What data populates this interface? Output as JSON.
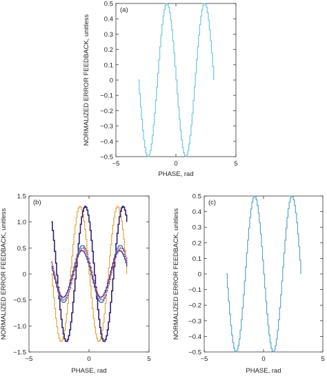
{
  "chart_data": [
    {
      "panel": "(a)",
      "type": "line",
      "xlabel": "PHASE, rad",
      "ylabel": "NORMALIZED ERROR FEEDBACK, unitless",
      "xlim": [
        -5,
        5
      ],
      "ylim": [
        -0.5,
        0.5
      ],
      "xticks": [
        -5,
        0,
        5
      ],
      "yticks": [
        -0.5,
        -0.4,
        -0.3,
        -0.2,
        -0.1,
        0,
        0.1,
        0.2,
        0.3,
        0.4,
        0.5
      ],
      "yticklabels": [
        "−0.5",
        "−0.4",
        "−0.3",
        "−0.2",
        "−0.1",
        "0",
        "0.1",
        "0.2",
        "0.3",
        "0.4",
        "0.5"
      ],
      "grid": false,
      "series": [
        {
          "color": "#6cc6dc",
          "amplitude": 0.5,
          "offset": 0,
          "x_start": -3.1416,
          "x_end": 3.1416
        }
      ]
    },
    {
      "panel": "(b)",
      "type": "line",
      "xlabel": "PHASE, rad",
      "ylabel": "NORMALIZED ERROR FEEDBACK, unitless",
      "xlim": [
        -5,
        5
      ],
      "ylim": [
        -1.5,
        1.5
      ],
      "xticks": [
        -5,
        0,
        5
      ],
      "yticks": [
        -1.5,
        -1.0,
        -0.5,
        0,
        0.5,
        1.0,
        1.5
      ],
      "yticklabels": [
        "−1.5",
        "−1.0",
        "−0.5",
        "0",
        "0.5",
        "1.0",
        "1.5"
      ],
      "grid": false,
      "series": [
        {
          "color": "#e8a33a",
          "amplitude": 1.3,
          "offset": 0.0,
          "x_start": -3.1416,
          "x_end": 3.1416
        },
        {
          "color": "#2e1f6e",
          "amplitude": 1.3,
          "offset": 0.55,
          "x_start": -3.1416,
          "x_end": 3.1416
        },
        {
          "color": "#3a7bbf",
          "amplitude": 0.55,
          "offset": 0.25,
          "x_start": -3.1416,
          "x_end": 3.1416
        },
        {
          "color": "#9fd0ee",
          "amplitude": 0.5,
          "offset": 0.3,
          "x_start": -3.1416,
          "x_end": 3.1416
        },
        {
          "color": "#3b2a9a",
          "amplitude": 0.45,
          "offset": 0.2,
          "x_start": -3.1416,
          "x_end": 3.1416
        },
        {
          "color": "#cc3333",
          "amplitude": 0.5,
          "offset": 0.3,
          "x_start": -3.1416,
          "x_end": 3.1416,
          "style": "dotted"
        }
      ]
    },
    {
      "panel": "(c)",
      "type": "line",
      "xlabel": "PHASE, rad",
      "ylabel": "NORMALIZED ERROR FEEDBACK, unitless",
      "xlim": [
        -5,
        5
      ],
      "ylim": [
        -0.5,
        0.5
      ],
      "xticks": [
        -5,
        0,
        5
      ],
      "yticks": [
        -0.5,
        -0.4,
        -0.3,
        -0.2,
        -0.1,
        0,
        0.1,
        0.2,
        0.3,
        0.4,
        0.5
      ],
      "yticklabels": [
        "−0.5",
        "−0.4",
        "−0.3",
        "−0.2",
        "−0.1",
        "0",
        "0.1",
        "0.2",
        "0.3",
        "0.4",
        "0.5"
      ],
      "grid": false,
      "series": [
        {
          "color": "#5aa3cc",
          "amplitude": 0.5,
          "offset": 0,
          "x_start": -3.1416,
          "x_end": 3.1416
        }
      ]
    }
  ]
}
